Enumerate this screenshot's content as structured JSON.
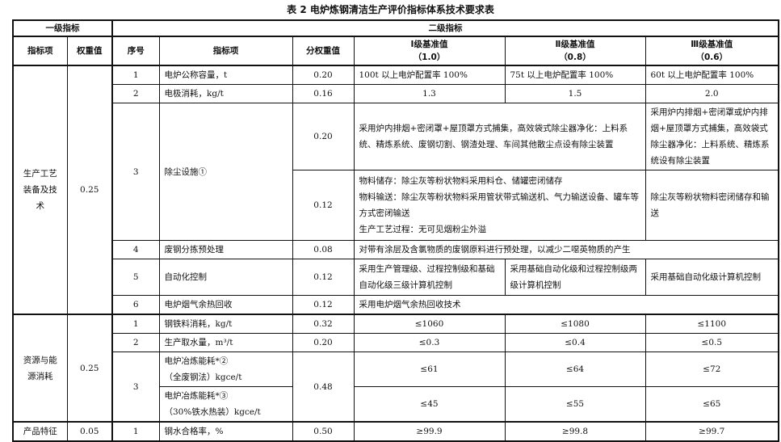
{
  "title": "表 2  电炉炼钢清洁生产评价指标体系技术要求表",
  "header": {
    "level1": "一级指标",
    "level2": "二级指标",
    "l1_item": "指标项",
    "l1_weight": "权重值",
    "seq": "序号",
    "l2_item": "指标项",
    "sub_weight": "分权重值",
    "grade1": "Ⅰ级基准值\n（1.0）",
    "grade2": "Ⅱ级基准值\n（0.8）",
    "grade3": "Ⅲ级基准值\n（0.6）"
  },
  "groups": [
    {
      "name": "生产工艺\n装备及技\n术",
      "weight": "0.25",
      "rows": [
        {
          "seq": "1",
          "item": "电炉公称容量，t",
          "w": "0.20",
          "g1": "100t 以上电炉配置率 100%",
          "g2": "75t 以上电炉配置率 100%",
          "g3": "60t 以上电炉配置率 100%"
        },
        {
          "seq": "2",
          "item": "电极消耗，kg/t",
          "w": "0.16",
          "g1": "1.3",
          "g2": "1.5",
          "g3": "2.0"
        },
        {
          "seq": "3",
          "item": "除尘设施①",
          "w": "0.20",
          "g12": "采用炉内排烟+密闭罩+屋顶罩方式捕集，高效袋式除尘器净化：上料系统、精炼系统、废钢切割、钢渣处理、车间其他散尘点设有除尘装置",
          "g3": "采用炉内排烟+密闭罩或炉内排烟+屋顶罩方式捕集，高效袋式除尘器净化：上料系统、精炼系统设有除尘装置"
        },
        {
          "w": "0.12",
          "g12": "物料储存：除尘灰等粉状物料采用料仓、储罐密闭储存\n物料输送：除尘灰等粉状物料采用管状带式输送机、气力输送设备、罐车等方式密闭输送\n生产工艺过程：无可见烟粉尘外溢",
          "g3": "除尘灰等粉状物料密闭储存和输送"
        },
        {
          "seq": "4",
          "item": "废钢分拣预处理",
          "w": "0.08",
          "gall": "对带有涂层及含氯物质的废钢原料进行预处理，以减少二噁英物质的产生"
        },
        {
          "seq": "5",
          "item": "自动化控制",
          "w": "0.12",
          "g1": "采用生产管理级、过程控制级和基础自动化级三级计算机控制",
          "g2": "采用基础自动化级和过程控制级两级计算机控制",
          "g3": "采用基础自动化级计算机控制"
        },
        {
          "seq": "6",
          "item": "电炉烟气余热回收",
          "w": "0.12",
          "gall": "采用电炉烟气余热回收技术"
        }
      ]
    },
    {
      "name": "资源与能\n源消耗",
      "weight": "0.25",
      "rows": [
        {
          "seq": "1",
          "item": "钢铁料消耗，kg/t",
          "w": "0.32",
          "g1": "≤1060",
          "g2": "≤1080",
          "g3": "≤1100"
        },
        {
          "seq": "2",
          "item": "生产取水量，m³/t",
          "w": "0.20",
          "g1": "≤0.3",
          "g2": "≤0.4",
          "g3": "≤0.5"
        },
        {
          "seq": "3",
          "item": "电炉冶炼能耗*②\n（全废钢法）kgce/t",
          "w": "0.48",
          "g1": "≤61",
          "g2": "≤64",
          "g3": "≤72"
        },
        {
          "item": "电炉冶炼能耗*③\n（30%铁水热装）kgce/t",
          "g1": "≤45",
          "g2": "≤55",
          "g3": "≤65"
        }
      ]
    },
    {
      "name": "产品特征",
      "weight": "0.05",
      "rows": [
        {
          "seq": "1",
          "item": "钢水合格率，%",
          "w": "0.50",
          "g1": "≥99.9",
          "g2": "≥99.8",
          "g3": "≥99.7"
        }
      ]
    }
  ]
}
